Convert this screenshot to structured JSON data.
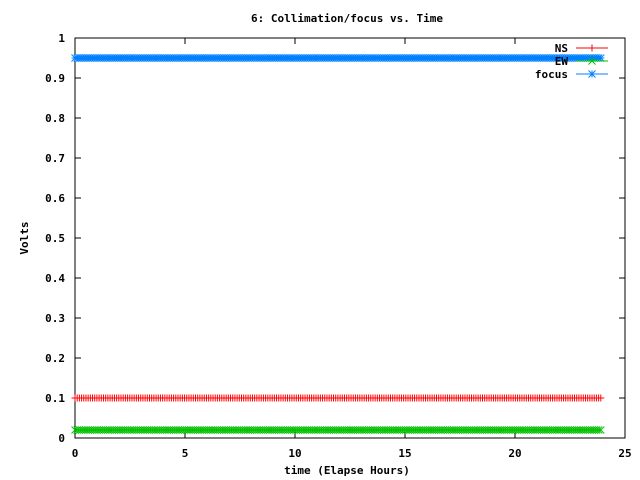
{
  "chart_data": {
    "type": "line",
    "title": "6: Collimation/focus vs. Time",
    "xlabel": "time (Elapse Hours)",
    "ylabel": "Volts",
    "xlim": [
      0,
      25
    ],
    "ylim": [
      0,
      1
    ],
    "x_ticks": [
      "0",
      "5",
      "10",
      "15",
      "20",
      "25"
    ],
    "y_ticks": [
      "0",
      "0.1",
      "0.2",
      "0.3",
      "0.4",
      "0.5",
      "0.6",
      "0.7",
      "0.8",
      "0.9",
      "1"
    ],
    "grid": false,
    "legend_position": "top-right",
    "x_range_of_samples": [
      0,
      23.9
    ],
    "series": [
      {
        "name": "NS",
        "marker": "plus",
        "color": "#ff0000",
        "value": 0.1
      },
      {
        "name": "EW",
        "marker": "x",
        "color": "#00c000",
        "value": 0.02
      },
      {
        "name": "focus",
        "marker": "star",
        "color": "#0080ff",
        "value": 0.95
      }
    ]
  }
}
